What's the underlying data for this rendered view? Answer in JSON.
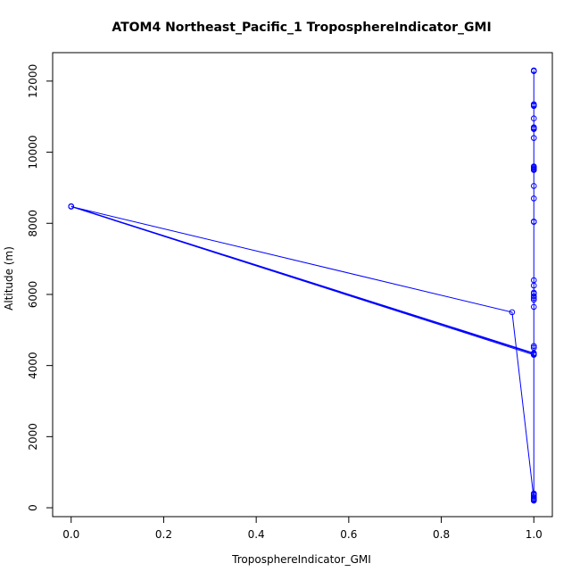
{
  "chart_data": {
    "type": "scatter",
    "title": "ATOM4 Northeast_Pacific_1 TroposphereIndicator_GMI",
    "xlabel": "TroposphereIndicator_GMI",
    "ylabel": "Altitude (m)",
    "xlim": [
      -0.04,
      1.04
    ],
    "ylim": [
      -250,
      12800
    ],
    "xticks": [
      0,
      0.2,
      0.4,
      0.6,
      0.8,
      1.0
    ],
    "xtick_labels": [
      "0.0",
      "0.2",
      "0.4",
      "0.6",
      "0.8",
      "1.0"
    ],
    "yticks": [
      0,
      2000,
      4000,
      6000,
      8000,
      10000,
      12000
    ],
    "ytick_labels": [
      "0",
      "2000",
      "4000",
      "6000",
      "8000",
      "10000",
      "12000"
    ],
    "grid": false,
    "color": "#0000ff",
    "series": [
      {
        "style": "line+points",
        "x": [
          1.0,
          1.0,
          1.0,
          1.0,
          1.0,
          1.0,
          1.0,
          1.0,
          1.0,
          1.0,
          1.0,
          1.0,
          1.0,
          1.0,
          1.0,
          1.0,
          1.0,
          1.0,
          1.0,
          1.0,
          1.0,
          1.0,
          1.0,
          1.0,
          1.0,
          1.0,
          0.0,
          0.953,
          1.0,
          1.0,
          1.0,
          1.0,
          1.0,
          1.0,
          1.0,
          1.0,
          1.0,
          1.0,
          1.0,
          1.0,
          1.0,
          1.0,
          0.0,
          1.0,
          1.0,
          1.0,
          1.0,
          1.0,
          1.0
        ],
        "y": [
          220,
          250,
          380,
          12300,
          12280,
          11350,
          11320,
          10950,
          10700,
          10650,
          10400,
          9600,
          9550,
          9500,
          9050,
          8700,
          8050,
          6400,
          6250,
          6050,
          5950,
          5850,
          5650,
          4550,
          4320,
          4300,
          8470,
          5500,
          250,
          230,
          200,
          300,
          350,
          400,
          11300,
          10680,
          9520,
          8040,
          6020,
          5900,
          4500,
          4330,
          8480,
          4350,
          220,
          260,
          12290,
          9580,
          380
        ]
      }
    ]
  }
}
